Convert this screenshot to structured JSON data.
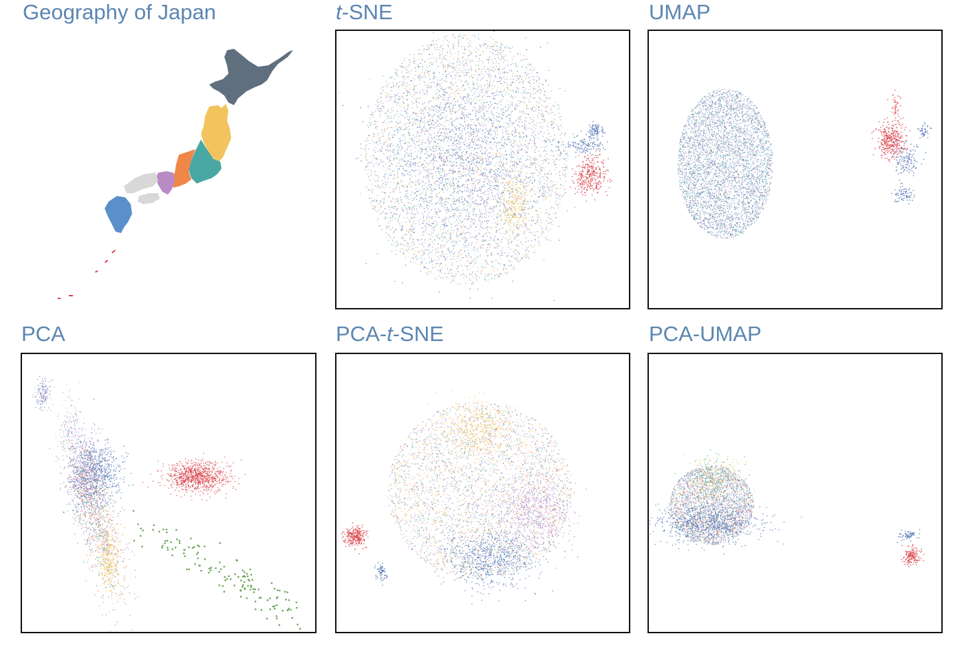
{
  "titles": {
    "japan": "Geography of Japan",
    "tsne_prefix": "t",
    "tsne_suffix": "-SNE",
    "umap": "UMAP",
    "pca": "PCA",
    "pcatsne_prefix": "PCA-",
    "pcatsne_italic": "t",
    "pcatsne_suffix": "-SNE",
    "pcaumap": "PCA-UMAP"
  },
  "colors": {
    "title": "#5b86b2",
    "hokkaido": "#5f6f7e",
    "tohoku": "#f2c45e",
    "kanto": "#4aa8a4",
    "chubu": "#ee8747",
    "kinki": "#b88bc5",
    "chugoku_shikoku": "#d8d8d8",
    "kyushu": "#5b8fc9",
    "okinawa": "#d9414a",
    "green": "#6ea55a",
    "blue": "#4e70b4"
  },
  "chart_data": [
    {
      "type": "scatter",
      "panel": "t-SNE",
      "title": "t-SNE",
      "clusters": [
        {
          "color": "mixed",
          "x": [
            0,
            0
          ],
          "y": [
            0,
            0
          ],
          "note": "large ellipse"
        }
      ],
      "axes": "none"
    },
    {
      "type": "scatter",
      "panel": "UMAP",
      "title": "UMAP",
      "axes": "none"
    },
    {
      "type": "scatter",
      "panel": "PCA",
      "title": "PCA",
      "axes": "none"
    },
    {
      "type": "scatter",
      "panel": "PCA-t-SNE",
      "title": "PCA-t-SNE",
      "axes": "none"
    },
    {
      "type": "scatter",
      "panel": "PCA-UMAP",
      "title": "PCA-UMAP",
      "axes": "none"
    }
  ]
}
